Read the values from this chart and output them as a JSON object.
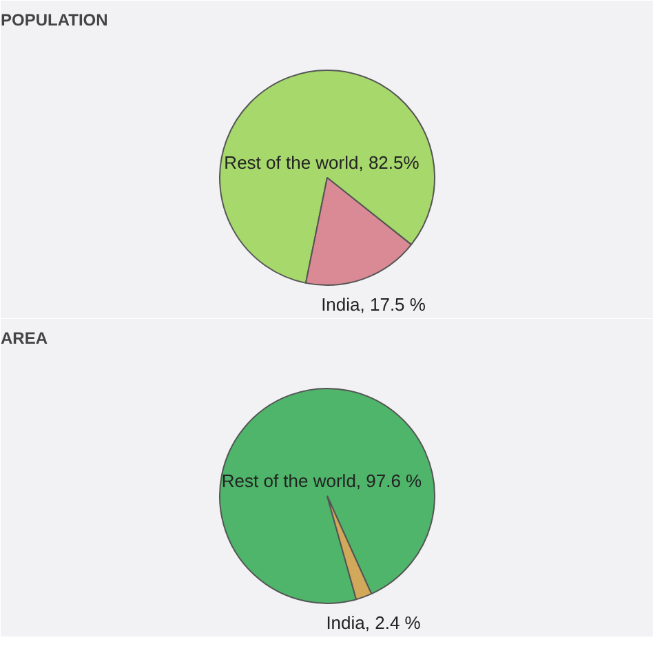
{
  "chart_data": [
    {
      "type": "pie",
      "title": "POPULATION",
      "categories": [
        "Rest of the world",
        "India"
      ],
      "values": [
        82.5,
        17.5
      ],
      "colors": [
        "#a6d86c",
        "#d98a94"
      ],
      "value_labels": [
        "82.5%",
        "17.5 %"
      ]
    },
    {
      "type": "pie",
      "title": "AREA",
      "categories": [
        "Rest of the world",
        "India"
      ],
      "values": [
        97.6,
        2.4
      ],
      "colors": [
        "#4fb56a",
        "#d2a85a"
      ],
      "value_labels": [
        "97.6 %",
        "2.4 %"
      ]
    }
  ]
}
